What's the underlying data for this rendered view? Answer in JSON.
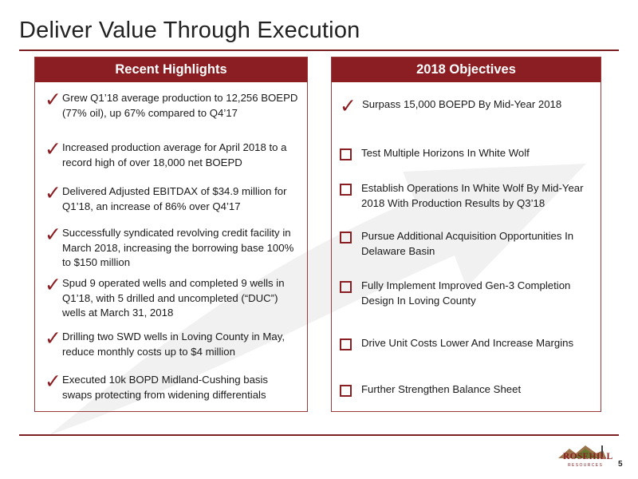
{
  "slide_title": "Deliver Value Through Execution",
  "left_panel": {
    "heading": "Recent Highlights",
    "items": [
      "Grew Q1’18 average production to 12,256 BOEPD (77% oil), up 67% compared to Q4’17",
      "Increased production average for April 2018 to a record high of over 18,000 net BOEPD",
      "Delivered Adjusted EBITDAX of $34.9 million for Q1’18, an increase of 86% over Q4’17",
      "Successfully syndicated revolving credit facility in March 2018, increasing the borrowing base 100% to $150 million",
      "Spud 9 operated wells and completed 9 wells in Q1’18, with 5 drilled and uncompleted (“DUC”) wells at March 31, 2018",
      "Drilling two SWD wells in Loving County in May, reduce monthly costs up to $4 million",
      "Executed 10k BOPD Midland-Cushing basis swaps protecting from widening differentials"
    ]
  },
  "right_panel": {
    "heading": "2018 Objectives",
    "items": [
      {
        "marker": "check",
        "text": "Surpass 15,000 BOEPD By Mid-Year 2018"
      },
      {
        "marker": "checkbox",
        "text": "Test Multiple Horizons In White Wolf"
      },
      {
        "marker": "checkbox",
        "text": "Establish Operations In White Wolf By Mid-Year 2018 With Production Results by Q3’18"
      },
      {
        "marker": "checkbox",
        "text": "Pursue Additional Acquisition Opportunities In Delaware Basin"
      },
      {
        "marker": "checkbox",
        "text": "Fully Implement Improved Gen-3 Completion Design In Loving County"
      },
      {
        "marker": "checkbox",
        "text": "Drive Unit Costs Lower And Increase Margins"
      },
      {
        "marker": "checkbox",
        "text": "Further Strengthen Balance Sheet"
      }
    ]
  },
  "logo": {
    "name": "ROSEHILL",
    "sub": "RESOURCES"
  },
  "page_number": "5",
  "colors": {
    "accent": "#8a1e22",
    "arrow": "#f1f1f1"
  },
  "icons": {
    "check": "checkmark-icon",
    "checkbox": "checkbox-icon"
  }
}
